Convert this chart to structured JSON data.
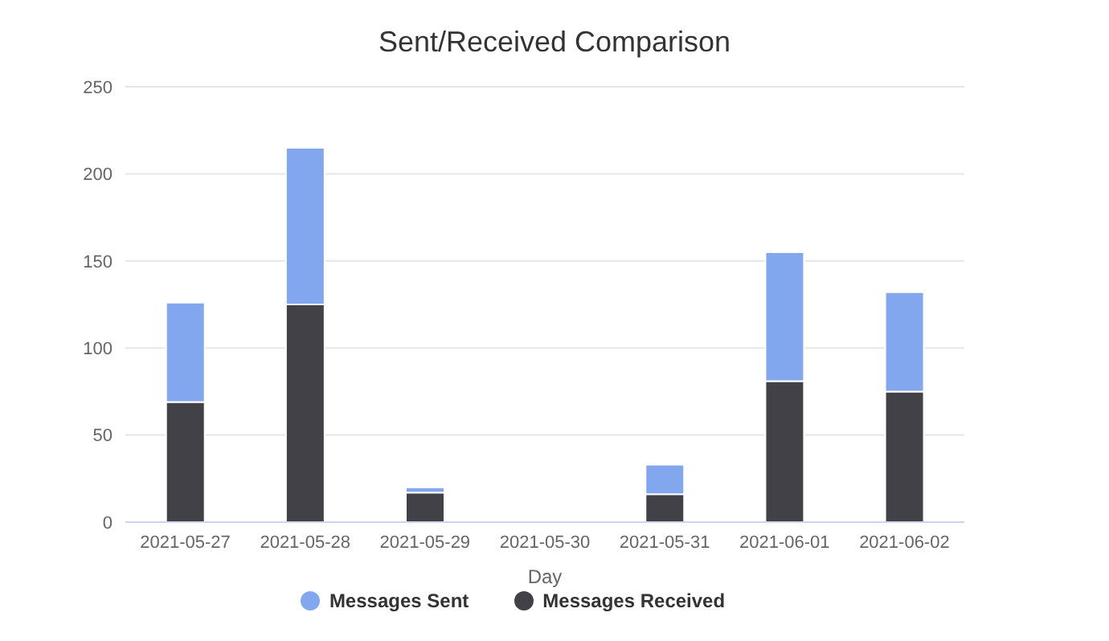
{
  "chart_data": {
    "type": "bar",
    "title": "Sent/Received Comparison",
    "xlabel": "Day",
    "categories": [
      "2021-05-27",
      "2021-05-28",
      "2021-05-29",
      "2021-05-30",
      "2021-05-31",
      "2021-06-01",
      "2021-06-02"
    ],
    "series": [
      {
        "name": "Messages Received",
        "color": "#434148",
        "values": [
          69,
          125,
          17,
          0,
          16,
          81,
          75
        ]
      },
      {
        "name": "Messages Sent",
        "color": "#83a7ef",
        "values": [
          57,
          90,
          3,
          0,
          17,
          74,
          57
        ]
      }
    ],
    "stacked": true,
    "ylim": [
      0,
      250
    ],
    "yticks": [
      0,
      50,
      100,
      150,
      200,
      250
    ],
    "grid": "y",
    "legend": "bottom"
  }
}
